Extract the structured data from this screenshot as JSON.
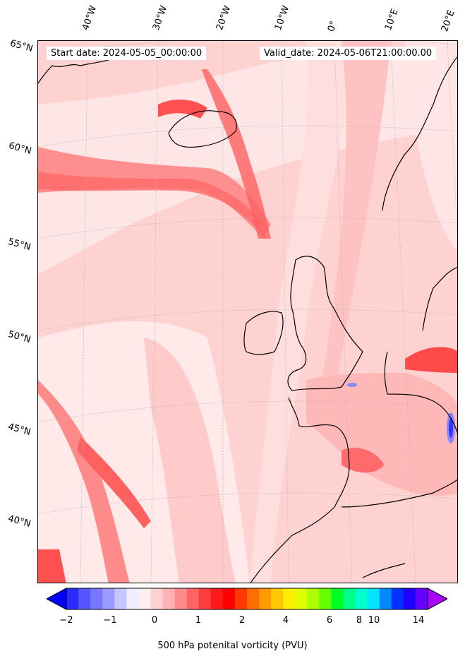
{
  "header": {
    "start_date": "Start date: 2024-05-05_00:00:00",
    "valid_date": "Valid_date: 2024-05-06T21:00:00.00"
  },
  "longitude_labels": [
    "40°W",
    "30°W",
    "20°W",
    "10°W",
    "0°",
    "10°E",
    "20°E"
  ],
  "latitude_labels": [
    "65°N",
    "60°N",
    "55°N",
    "50°N",
    "45°N",
    "40°N"
  ],
  "colorbar": {
    "label": "500 hPa potenital vorticity (PVU)",
    "tick_labels": [
      "−2",
      "−1",
      "0",
      "1",
      "2",
      "4",
      "6",
      "8",
      "10",
      "14"
    ],
    "colors": [
      "#0000ff",
      "#2b2bff",
      "#5555ff",
      "#7878ff",
      "#9a9aff",
      "#c5c5ff",
      "#eeeeff",
      "#ffeeee",
      "#ffd0d0",
      "#ffb2b2",
      "#ff8c8c",
      "#ff6464",
      "#ff3b3b",
      "#ff1a1a",
      "#ff0000",
      "#ff3a00",
      "#ff6e00",
      "#ff9a00",
      "#ffc800",
      "#ffee00",
      "#e0ff00",
      "#aaff00",
      "#66ff00",
      "#00ff22",
      "#00ff88",
      "#00ffcc",
      "#00e4ff",
      "#0088ff",
      "#0033ff",
      "#2200ff",
      "#6600ff",
      "#aa00ff"
    ]
  }
}
